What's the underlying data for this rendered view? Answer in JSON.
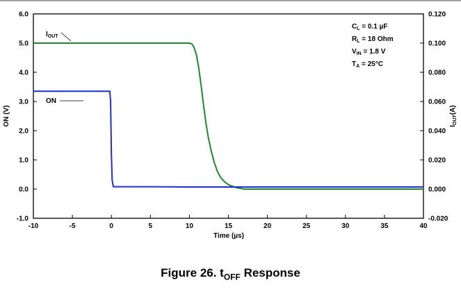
{
  "chart_data": {
    "type": "line",
    "xlabel": "Time (µs)",
    "ylabel_left": "ON (V)",
    "ylabel_right": {
      "main": "I",
      "sub": "OUT",
      "tail": "(A)"
    },
    "xlim": [
      -10,
      40
    ],
    "ylim_left": [
      -1.0,
      6.0
    ],
    "ylim_right": [
      -0.02,
      0.12
    ],
    "x_ticks": [
      "-10",
      "-5",
      "0",
      "5",
      "10",
      "15",
      "20",
      "25",
      "30",
      "35",
      "40"
    ],
    "y_left_ticks": [
      "-1.0",
      "0.0",
      "1.0",
      "2.0",
      "3.0",
      "4.0",
      "5.0",
      "6.0"
    ],
    "y_right_ticks": [
      "-0.020",
      "0.000",
      "0.020",
      "0.040",
      "0.060",
      "0.080",
      "0.100",
      "0.120"
    ],
    "grid": false,
    "series": [
      {
        "name": "ON",
        "axis": "left",
        "color": "#1f2fd0",
        "points": [
          [
            -10,
            3.35
          ],
          [
            -5,
            3.35
          ],
          [
            -0.2,
            3.35
          ],
          [
            -0.1,
            3.0
          ],
          [
            0.0,
            1.2
          ],
          [
            0.1,
            0.3
          ],
          [
            0.25,
            0.08
          ],
          [
            5,
            0.08
          ],
          [
            10,
            0.07
          ],
          [
            20,
            0.07
          ],
          [
            30,
            0.07
          ],
          [
            40,
            0.07
          ]
        ]
      },
      {
        "name": "I_OUT",
        "axis": "right",
        "color": "#1d8a2a",
        "points": [
          [
            -10,
            0.1
          ],
          [
            0,
            0.1
          ],
          [
            5,
            0.1
          ],
          [
            10,
            0.1
          ],
          [
            10.3,
            0.0995
          ],
          [
            10.6,
            0.097
          ],
          [
            10.9,
            0.092
          ],
          [
            11.2,
            0.083
          ],
          [
            11.5,
            0.071
          ],
          [
            11.8,
            0.058
          ],
          [
            12.1,
            0.046
          ],
          [
            12.4,
            0.036
          ],
          [
            12.8,
            0.026
          ],
          [
            13.2,
            0.018
          ],
          [
            13.6,
            0.012
          ],
          [
            14.0,
            0.008
          ],
          [
            14.5,
            0.005
          ],
          [
            15,
            0.003
          ],
          [
            16,
            0.001
          ],
          [
            17,
            0.0
          ],
          [
            20,
            0.0
          ],
          [
            25,
            0.0
          ],
          [
            30,
            0.0
          ],
          [
            35,
            0.0
          ],
          [
            40,
            0.0
          ]
        ]
      }
    ],
    "annotations": {
      "iout_label": {
        "main": "I",
        "sub": "OUT"
      },
      "on_label": "ON",
      "conditions": [
        {
          "main": "C",
          "sub": "L",
          "rest": " = 0.1 µF"
        },
        {
          "main": "R",
          "sub": "L",
          "rest": " = 18 Ohm"
        },
        {
          "main": "V",
          "sub": "IN",
          "rest": " = 1.8 V"
        },
        {
          "main": "T",
          "sub": "A",
          "rest": " = 25°C"
        }
      ]
    }
  },
  "caption": {
    "prefix": "Figure 26. t",
    "sub": "OFF",
    "suffix": " Response"
  }
}
